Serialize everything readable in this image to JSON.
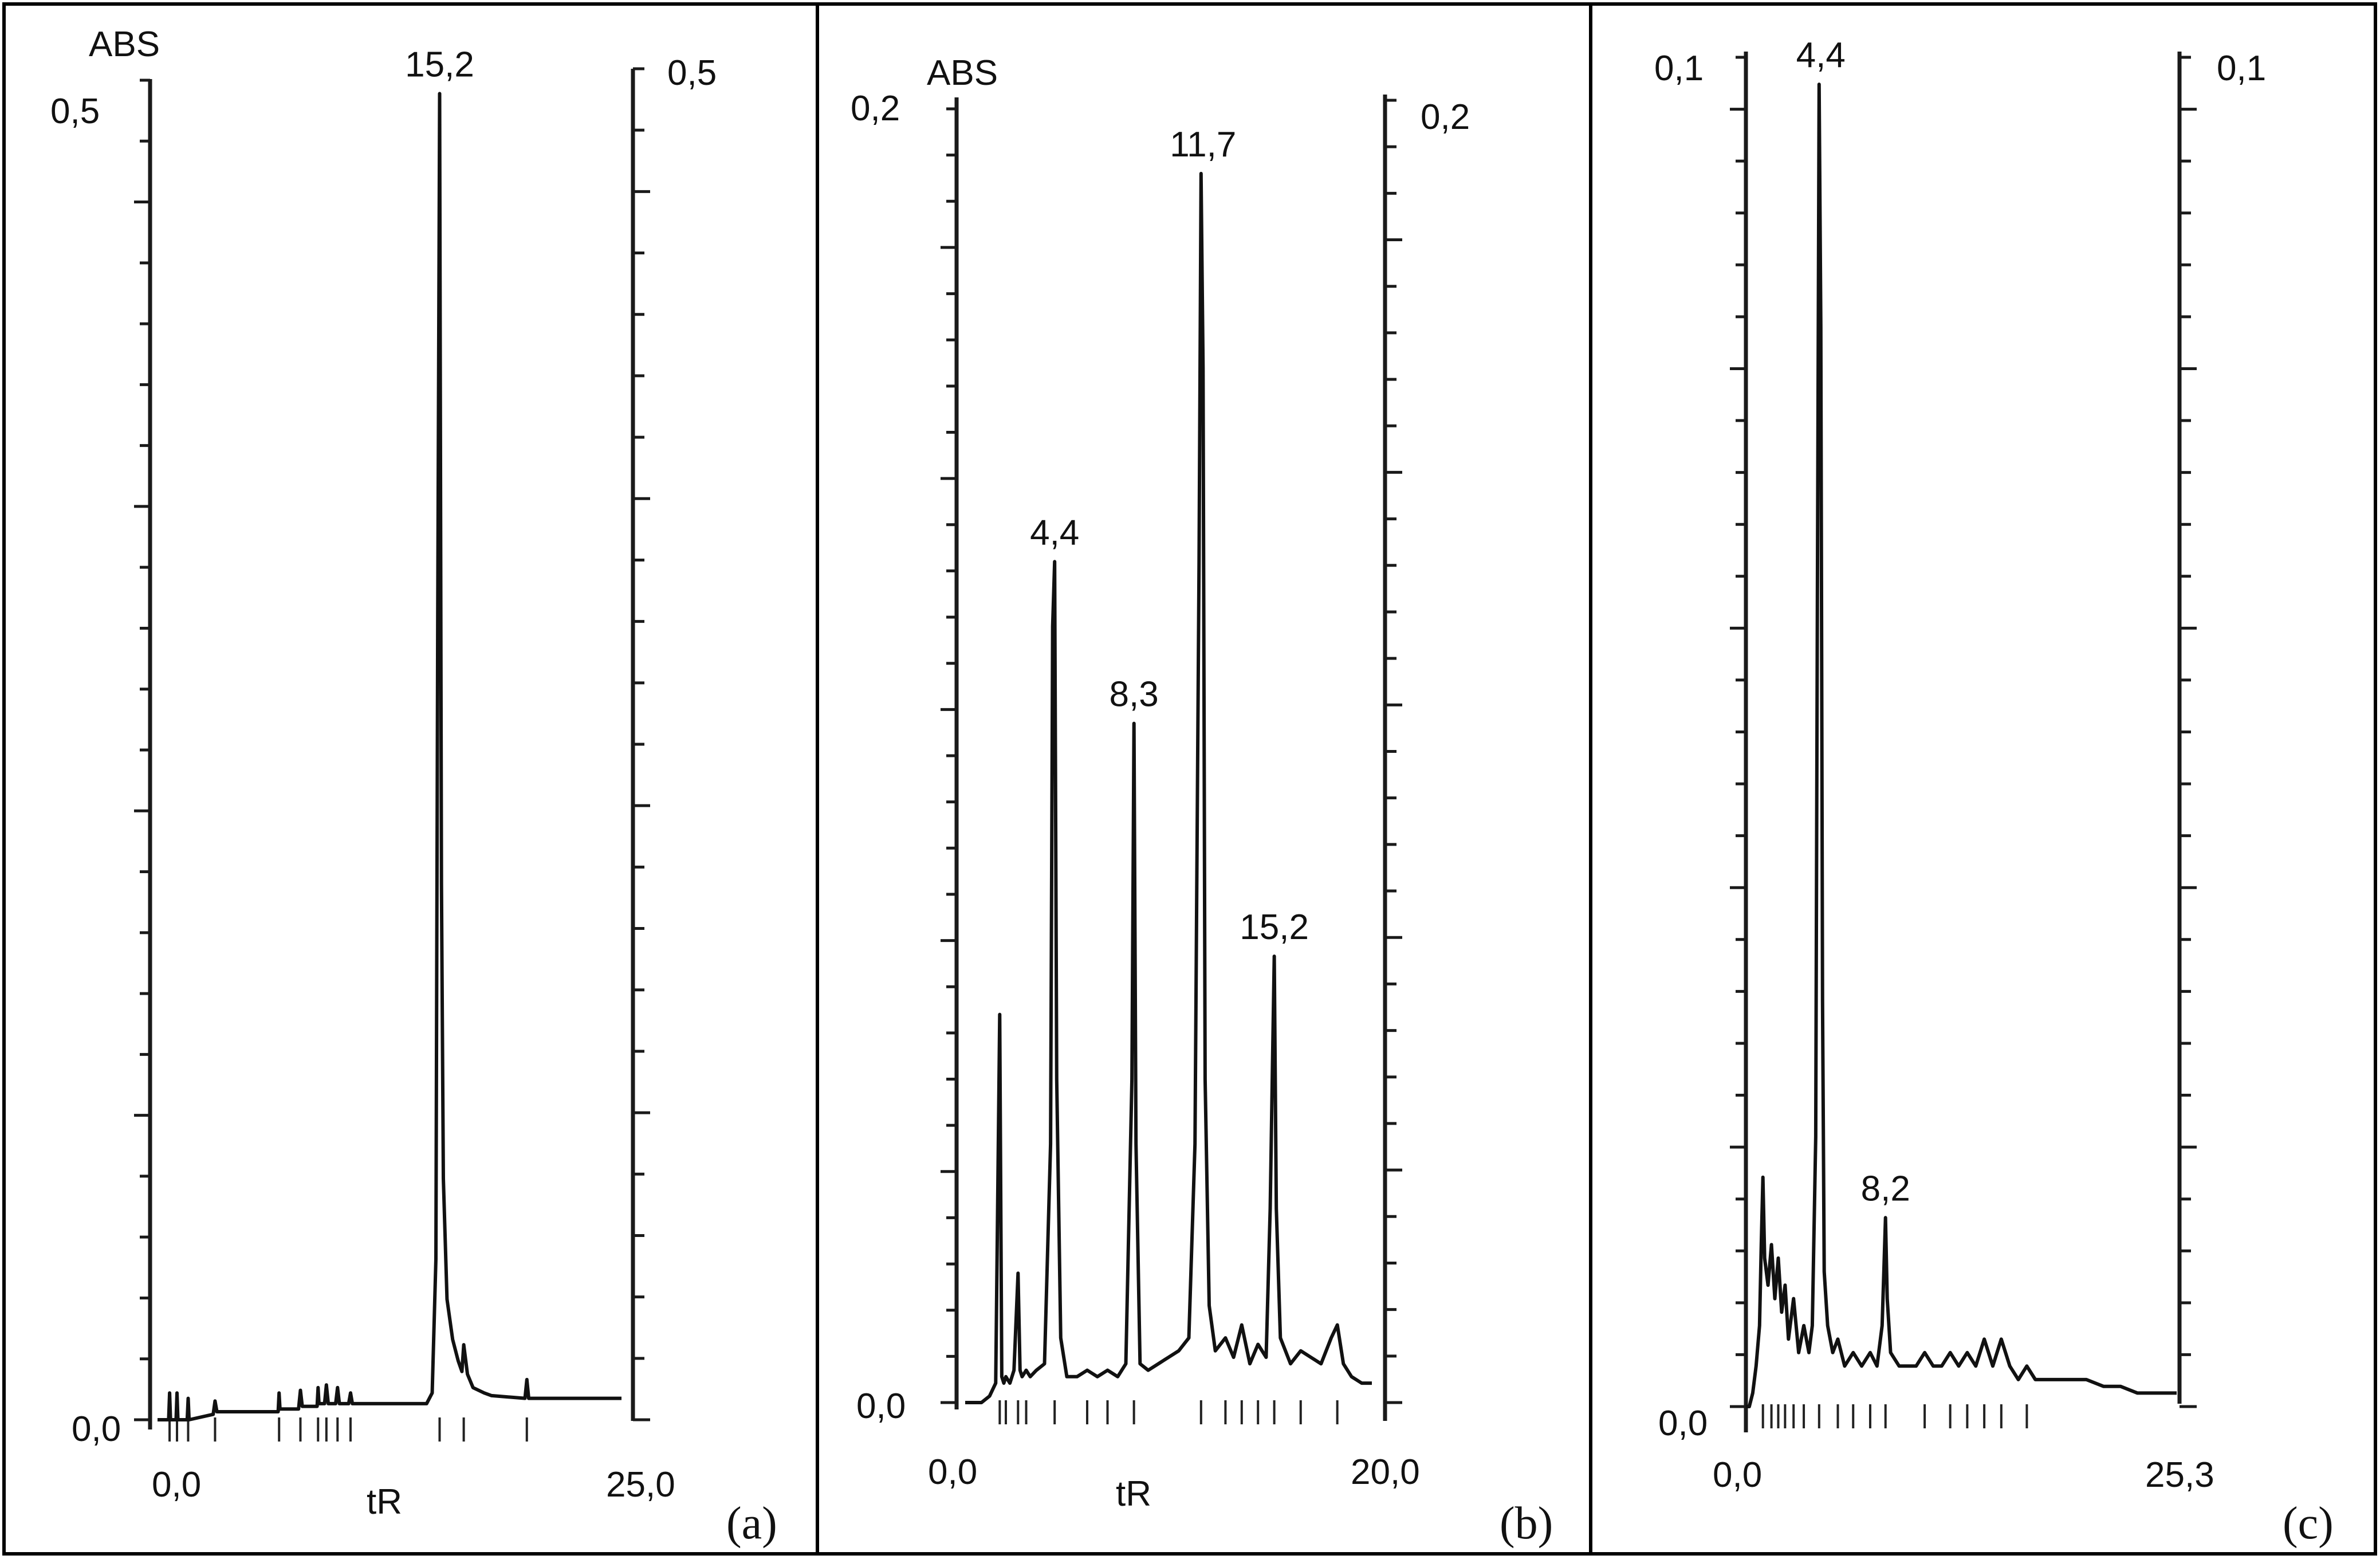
{
  "chart_data": [
    {
      "type": "line",
      "panel_label": "(a)",
      "ylabel": "ABS",
      "xlabel": "tR",
      "x_tick_labels": [
        "0,0",
        "25,0"
      ],
      "y_left_tick_labels": [
        "0,0",
        "0,5"
      ],
      "y_right_tick_labels": [
        "0,5"
      ],
      "xlim": [
        0,
        25
      ],
      "ylim": [
        0,
        0.5
      ],
      "peaks": [
        {
          "x": 15.2,
          "y": 0.495,
          "label": "15,2"
        }
      ],
      "series": [
        {
          "x": [
            0,
            0.6,
            0.65,
            0.7,
            1.0,
            1.05,
            1.1,
            1.6,
            1.65,
            1.7,
            3.0,
            3.1,
            3.2,
            6.5,
            6.55,
            6.6,
            7.6,
            7.7,
            7.8,
            8.6,
            8.65,
            8.7,
            9.0,
            9.1,
            9.2,
            9.6,
            9.7,
            9.8,
            10.3,
            10.4,
            10.5,
            14.5,
            14.8,
            15.0,
            15.1,
            15.2,
            15.3,
            15.4,
            15.6,
            15.9,
            16.2,
            16.4,
            16.5,
            16.7,
            17.0,
            17.6,
            18.0,
            19.8,
            19.9,
            20.0,
            20.3,
            25
          ],
          "y": [
            0.0,
            0.0,
            0.01,
            0.0,
            0.0,
            0.01,
            0.0,
            0.0,
            0.008,
            0.0,
            0.002,
            0.007,
            0.003,
            0.003,
            0.01,
            0.004,
            0.004,
            0.011,
            0.005,
            0.005,
            0.012,
            0.006,
            0.006,
            0.013,
            0.006,
            0.006,
            0.012,
            0.006,
            0.006,
            0.01,
            0.006,
            0.006,
            0.01,
            0.06,
            0.3,
            0.495,
            0.2,
            0.09,
            0.045,
            0.03,
            0.022,
            0.018,
            0.028,
            0.017,
            0.012,
            0.01,
            0.009,
            0.008,
            0.015,
            0.008,
            0.008,
            0.008
          ]
        }
      ]
    },
    {
      "type": "line",
      "panel_label": "(b)",
      "ylabel": "ABS",
      "xlabel": "tR",
      "x_tick_labels": [
        "0,0",
        "20,0"
      ],
      "y_left_tick_labels": [
        "0,0",
        "0,2"
      ],
      "y_right_tick_labels": [
        "0,2"
      ],
      "xlim": [
        0,
        20
      ],
      "ylim": [
        0,
        0.2
      ],
      "peaks": [
        {
          "x": 4.4,
          "y": 0.13,
          "label": "4,4"
        },
        {
          "x": 8.3,
          "y": 0.105,
          "label": "8,3"
        },
        {
          "x": 11.7,
          "y": 0.19,
          "label": "11,7"
        },
        {
          "x": 15.2,
          "y": 0.069,
          "label": "15,2"
        }
      ],
      "series": [
        {
          "x": [
            0,
            0.8,
            1.2,
            1.5,
            1.7,
            1.8,
            1.9,
            2.0,
            2.2,
            2.4,
            2.6,
            2.7,
            2.8,
            3.0,
            3.2,
            3.5,
            3.9,
            4.2,
            4.3,
            4.4,
            4.5,
            4.7,
            5.0,
            5.5,
            6.0,
            6.5,
            7.0,
            7.5,
            7.9,
            8.2,
            8.3,
            8.4,
            8.6,
            9.0,
            9.5,
            10.0,
            10.5,
            11.0,
            11.3,
            11.5,
            11.6,
            11.7,
            11.8,
            12.0,
            12.3,
            12.8,
            13.2,
            13.6,
            14.0,
            14.4,
            14.8,
            15.0,
            15.1,
            15.2,
            15.3,
            15.5,
            16.0,
            16.5,
            17.0,
            17.5,
            18.0,
            18.3,
            18.6,
            19.0,
            19.5,
            20.0
          ],
          "y": [
            0.0,
            0.0,
            0.001,
            0.003,
            0.06,
            0.004,
            0.003,
            0.004,
            0.003,
            0.005,
            0.02,
            0.005,
            0.004,
            0.005,
            0.004,
            0.005,
            0.006,
            0.04,
            0.12,
            0.13,
            0.05,
            0.01,
            0.004,
            0.004,
            0.005,
            0.004,
            0.005,
            0.004,
            0.006,
            0.05,
            0.105,
            0.04,
            0.006,
            0.005,
            0.006,
            0.007,
            0.008,
            0.01,
            0.04,
            0.13,
            0.19,
            0.16,
            0.05,
            0.015,
            0.008,
            0.01,
            0.007,
            0.012,
            0.006,
            0.009,
            0.007,
            0.03,
            0.05,
            0.069,
            0.03,
            0.01,
            0.006,
            0.008,
            0.007,
            0.006,
            0.01,
            0.012,
            0.006,
            0.004,
            0.003,
            0.003
          ]
        }
      ]
    },
    {
      "type": "line",
      "panel_label": "(c)",
      "ylabel": "",
      "xlabel": "",
      "x_tick_labels": [
        "0,0",
        "25,3"
      ],
      "y_left_tick_labels": [
        "0,0",
        "0,1"
      ],
      "y_right_tick_labels": [
        "0,1"
      ],
      "xlim": [
        0,
        25.3
      ],
      "ylim": [
        0,
        0.1
      ],
      "peaks": [
        {
          "x": 4.4,
          "y": 0.098,
          "label": "4,4"
        },
        {
          "x": 8.2,
          "y": 0.014,
          "label": "8,2"
        }
      ],
      "series": [
        {
          "x": [
            0,
            0.2,
            0.4,
            0.6,
            0.8,
            0.9,
            1.0,
            1.1,
            1.3,
            1.5,
            1.7,
            1.9,
            2.1,
            2.3,
            2.5,
            2.8,
            3.1,
            3.4,
            3.7,
            3.9,
            4.1,
            4.2,
            4.3,
            4.4,
            4.5,
            4.6,
            4.8,
            5.1,
            5.4,
            5.8,
            6.3,
            6.8,
            7.3,
            7.7,
            8.0,
            8.1,
            8.2,
            8.3,
            8.5,
            9.0,
            10.0,
            10.5,
            11.0,
            11.5,
            12.0,
            12.5,
            13.0,
            13.5,
            14.0,
            14.5,
            15.0,
            15.5,
            16.0,
            16.5,
            17.0,
            17.5,
            18.0,
            19.0,
            20.0,
            21.0,
            22.0,
            23.0,
            24.0,
            25.3
          ],
          "y": [
            0.0,
            0.0,
            0.001,
            0.003,
            0.006,
            0.012,
            0.017,
            0.011,
            0.009,
            0.012,
            0.008,
            0.011,
            0.007,
            0.009,
            0.005,
            0.008,
            0.004,
            0.006,
            0.004,
            0.006,
            0.02,
            0.06,
            0.098,
            0.08,
            0.03,
            0.01,
            0.006,
            0.004,
            0.005,
            0.003,
            0.004,
            0.003,
            0.004,
            0.003,
            0.006,
            0.01,
            0.014,
            0.008,
            0.004,
            0.003,
            0.003,
            0.004,
            0.003,
            0.003,
            0.004,
            0.003,
            0.004,
            0.003,
            0.005,
            0.003,
            0.005,
            0.003,
            0.002,
            0.003,
            0.002,
            0.002,
            0.002,
            0.002,
            0.002,
            0.0015,
            0.0015,
            0.001,
            0.001,
            0.001
          ]
        }
      ]
    }
  ]
}
